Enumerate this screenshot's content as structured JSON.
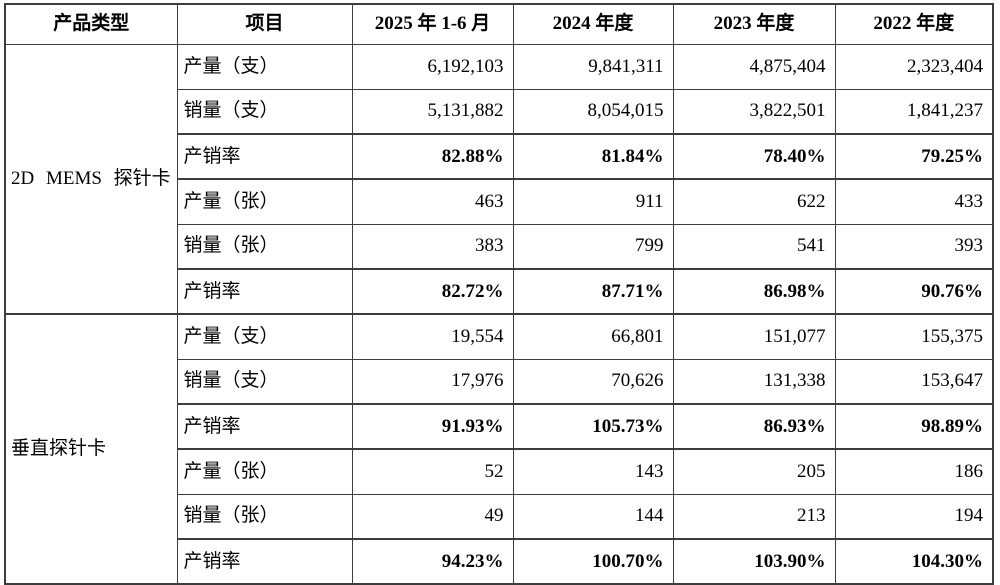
{
  "table": {
    "headers": [
      "产品类型",
      "项目",
      "2025 年 1-6 月",
      "2024 年度",
      "2023 年度",
      "2022 年度"
    ],
    "groups": [
      {
        "product_type": "2D MEMS 探针卡",
        "rows": [
          {
            "item": "产量（支）",
            "values": [
              "6,192,103",
              "9,841,311",
              "4,875,404",
              "2,323,404"
            ],
            "bold": false
          },
          {
            "item": "销量（支）",
            "values": [
              "5,131,882",
              "8,054,015",
              "3,822,501",
              "1,841,237"
            ],
            "bold": false
          },
          {
            "item": "产销率",
            "values": [
              "82.88%",
              "81.84%",
              "78.40%",
              "79.25%"
            ],
            "bold": true
          },
          {
            "item": "产量（张）",
            "values": [
              "463",
              "911",
              "622",
              "433"
            ],
            "bold": false
          },
          {
            "item": "销量（张）",
            "values": [
              "383",
              "799",
              "541",
              "393"
            ],
            "bold": false
          },
          {
            "item": "产销率",
            "values": [
              "82.72%",
              "87.71%",
              "86.98%",
              "90.76%"
            ],
            "bold": true
          }
        ]
      },
      {
        "product_type": "垂直探针卡",
        "rows": [
          {
            "item": "产量（支）",
            "values": [
              "19,554",
              "66,801",
              "151,077",
              "155,375"
            ],
            "bold": false
          },
          {
            "item": "销量（支）",
            "values": [
              "17,976",
              "70,626",
              "131,338",
              "153,647"
            ],
            "bold": false
          },
          {
            "item": "产销率",
            "values": [
              "91.93%",
              "105.73%",
              "86.93%",
              "98.89%"
            ],
            "bold": true
          },
          {
            "item": "产量（张）",
            "values": [
              "52",
              "143",
              "205",
              "186"
            ],
            "bold": false
          },
          {
            "item": "销量（张）",
            "values": [
              "49",
              "144",
              "213",
              "194"
            ],
            "bold": false
          },
          {
            "item": "产销率",
            "values": [
              "94.23%",
              "100.70%",
              "103.90%",
              "104.30%"
            ],
            "bold": true
          }
        ]
      }
    ]
  }
}
